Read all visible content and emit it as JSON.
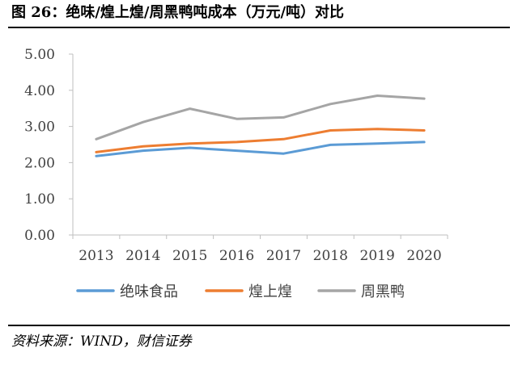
{
  "figure": {
    "title": "图 26：绝味/煌上煌/周黑鸭吨成本（万元/吨）对比",
    "source": "资料来源：WIND，财信证券"
  },
  "chart_data": {
    "type": "line",
    "title": "",
    "xlabel": "",
    "ylabel": "",
    "x": [
      "2013",
      "2014",
      "2015",
      "2016",
      "2017",
      "2018",
      "2019",
      "2020"
    ],
    "ylim": [
      0,
      5
    ],
    "yticks": [
      "0.00",
      "1.00",
      "2.00",
      "3.00",
      "4.00",
      "5.00"
    ],
    "grid": false,
    "legend": "bottom",
    "series": [
      {
        "name": "绝味食品",
        "color": "#5b9bd5",
        "values": [
          2.18,
          2.33,
          2.41,
          2.33,
          2.25,
          2.49,
          2.53,
          2.57
        ]
      },
      {
        "name": "煌上煌",
        "color": "#ed7d31",
        "values": [
          2.29,
          2.45,
          2.53,
          2.57,
          2.65,
          2.89,
          2.93,
          2.89
        ]
      },
      {
        "name": "周黑鸭",
        "color": "#a5a5a5",
        "values": [
          2.65,
          3.12,
          3.49,
          3.21,
          3.25,
          3.62,
          3.85,
          3.77
        ]
      }
    ]
  }
}
